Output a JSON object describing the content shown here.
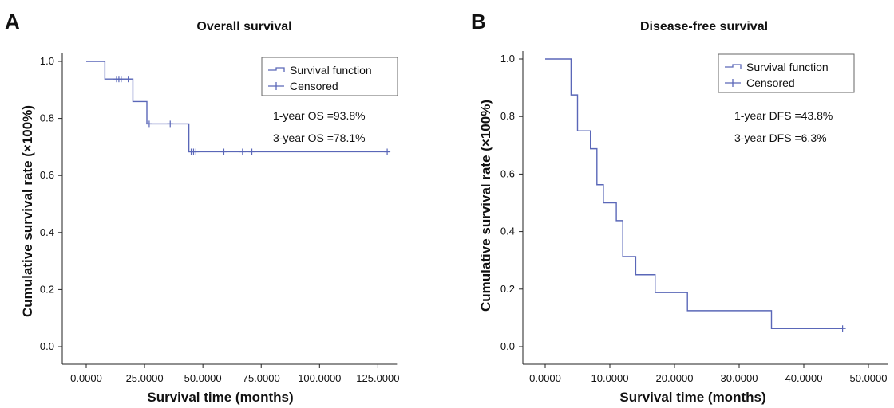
{
  "panels": [
    {
      "letter": "A",
      "title": "Overall survival",
      "xlabel": "Survival time (months)",
      "ylabel": "Cumulative survival rate (×100%)",
      "legend": {
        "items": [
          {
            "label": "Survival function",
            "icon": "step-line-icon"
          },
          {
            "label": "Censored",
            "icon": "plus-marker-icon"
          }
        ],
        "placement": "top-right"
      },
      "annotations": [
        "1-year OS =93.8%",
        "3-year OS =78.1%"
      ]
    },
    {
      "letter": "B",
      "title": "Disease-free survival",
      "xlabel": "Survival time (months)",
      "ylabel": "Cumulative survival rate (×100%)",
      "legend": {
        "items": [
          {
            "label": "Survival function",
            "icon": "step-line-icon"
          },
          {
            "label": "Censored",
            "icon": "plus-marker-icon"
          }
        ],
        "placement": "top-right"
      },
      "annotations": [
        "1-year DFS =43.8%",
        "3-year DFS =6.3%"
      ]
    }
  ],
  "colors": {
    "curve": "#5a67b8",
    "axis": "#222222",
    "background": "#ffffff"
  },
  "chart_data": [
    {
      "type": "line",
      "subtype": "kaplan-meier-step",
      "title": "Overall survival",
      "xlabel": "Survival time (months)",
      "ylabel": "Cumulative survival rate (×100%)",
      "xlim": [
        0,
        130
      ],
      "ylim": [
        0,
        1.0
      ],
      "x_ticks": [
        0,
        25,
        50,
        75,
        100,
        125
      ],
      "x_tick_labels": [
        "0.0000",
        "25.0000",
        "50.0000",
        "75.0000",
        "100.0000",
        "125.0000"
      ],
      "y_ticks": [
        0.0,
        0.2,
        0.4,
        0.6,
        0.8,
        1.0
      ],
      "y_tick_labels": [
        "0.0",
        "0.2",
        "0.4",
        "0.6",
        "0.8",
        "1.0"
      ],
      "grid": false,
      "series": [
        {
          "name": "Survival function",
          "steps": [
            {
              "x": 0,
              "y": 1.0
            },
            {
              "x": 8,
              "y": 0.938
            },
            {
              "x": 20,
              "y": 0.859
            },
            {
              "x": 26,
              "y": 0.781
            },
            {
              "x": 44,
              "y": 0.683
            }
          ],
          "end_x": 130
        },
        {
          "name": "Censored",
          "points": [
            {
              "x": 13,
              "y": 0.938
            },
            {
              "x": 14,
              "y": 0.938
            },
            {
              "x": 15,
              "y": 0.938
            },
            {
              "x": 18,
              "y": 0.938
            },
            {
              "x": 27,
              "y": 0.781
            },
            {
              "x": 36,
              "y": 0.781
            },
            {
              "x": 45,
              "y": 0.683
            },
            {
              "x": 46,
              "y": 0.683
            },
            {
              "x": 47,
              "y": 0.683
            },
            {
              "x": 59,
              "y": 0.683
            },
            {
              "x": 67,
              "y": 0.683
            },
            {
              "x": 71,
              "y": 0.683
            },
            {
              "x": 129,
              "y": 0.683
            }
          ]
        }
      ]
    },
    {
      "type": "line",
      "subtype": "kaplan-meier-step",
      "title": "Disease-free survival",
      "xlabel": "Survival time (months)",
      "ylabel": "Cumulative survival rate (×100%)",
      "xlim": [
        0,
        50
      ],
      "ylim": [
        0,
        1.0
      ],
      "x_ticks": [
        0,
        10,
        20,
        30,
        40,
        50
      ],
      "x_tick_labels": [
        "0.0000",
        "10.0000",
        "20.0000",
        "30.0000",
        "40.0000",
        "50.0000"
      ],
      "y_ticks": [
        0.0,
        0.2,
        0.4,
        0.6,
        0.8,
        1.0
      ],
      "y_tick_labels": [
        "0.0",
        "0.2",
        "0.4",
        "0.6",
        "0.8",
        "1.0"
      ],
      "grid": false,
      "series": [
        {
          "name": "Survival function",
          "steps": [
            {
              "x": 0,
              "y": 1.0
            },
            {
              "x": 4,
              "y": 0.875
            },
            {
              "x": 5,
              "y": 0.75
            },
            {
              "x": 7,
              "y": 0.688
            },
            {
              "x": 8,
              "y": 0.563
            },
            {
              "x": 9,
              "y": 0.5
            },
            {
              "x": 11,
              "y": 0.438
            },
            {
              "x": 12,
              "y": 0.313
            },
            {
              "x": 14,
              "y": 0.25
            },
            {
              "x": 17,
              "y": 0.188
            },
            {
              "x": 22,
              "y": 0.125
            },
            {
              "x": 35,
              "y": 0.063
            }
          ],
          "end_x": 46
        },
        {
          "name": "Censored",
          "points": [
            {
              "x": 46,
              "y": 0.063
            }
          ]
        }
      ]
    }
  ]
}
